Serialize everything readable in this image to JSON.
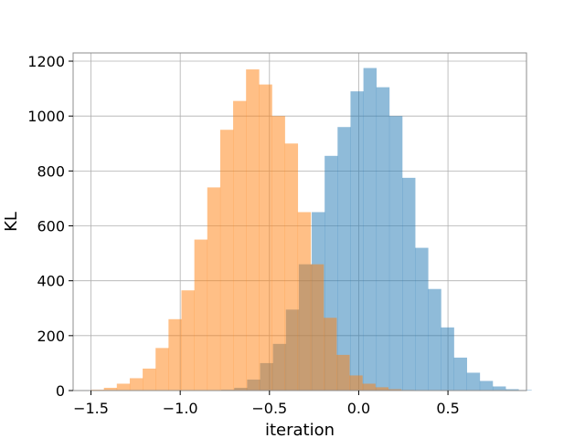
{
  "chart_data": {
    "type": "bar",
    "title": "",
    "xlabel": "iteration",
    "ylabel": "KL",
    "xlim": [
      -1.6,
      0.94
    ],
    "ylim": [
      0,
      1230
    ],
    "grid": true,
    "xticks": [
      -1.5,
      -1.0,
      -0.5,
      0.0,
      0.5
    ],
    "xtick_labels": [
      "−1.5",
      "−1.0",
      "−0.5",
      "0.0",
      "0.5"
    ],
    "yticks": [
      0,
      200,
      400,
      600,
      800,
      1000,
      1200
    ],
    "ytick_labels": [
      "0",
      "200",
      "400",
      "600",
      "800",
      "1000",
      "1200"
    ],
    "series": [
      {
        "color": "#1f77b4",
        "opacity": 0.5,
        "bin_start": -0.77,
        "bin_width": 0.0724,
        "counts": [
          3,
          10,
          40,
          100,
          170,
          295,
          460,
          650,
          855,
          960,
          1090,
          1175,
          1105,
          1000,
          775,
          520,
          370,
          230,
          120,
          65,
          35,
          15,
          5,
          2
        ]
      },
      {
        "color": "#ff7f0e",
        "opacity": 0.5,
        "bin_start": -1.5,
        "bin_width": 0.0724,
        "counts": [
          3,
          10,
          25,
          45,
          80,
          155,
          260,
          365,
          550,
          740,
          950,
          1055,
          1170,
          1115,
          1000,
          900,
          650,
          460,
          265,
          130,
          55,
          25,
          12,
          5,
          2
        ]
      }
    ]
  }
}
